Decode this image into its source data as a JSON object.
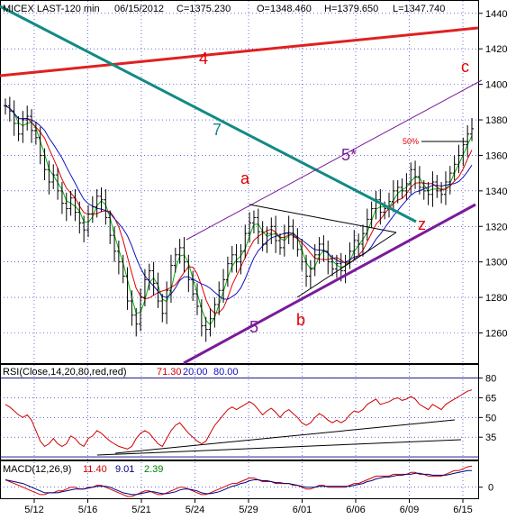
{
  "header": {
    "symbol": "MICEX LAST-120 min",
    "date": "06/15/2012",
    "close": "C=1375.230",
    "open": "O=1348.460",
    "high": "H=1379.650",
    "low": "L=1347.740"
  },
  "rsi_header": {
    "label": "RSI(Close,14,20,80,red,red)",
    "value": "71.30",
    "lower": "20.00",
    "upper": "80.00"
  },
  "macd_header": {
    "label": "MACD(12,26,9)",
    "macd": "11.40",
    "signal": "9.01",
    "hist": "2.39"
  },
  "annotations": {
    "wave_4": "4",
    "wave_7": "7",
    "wave_5star": "5*",
    "wave_a": "a",
    "wave_b": "b",
    "wave_c": "c",
    "wave_z": "z",
    "wave_5": "5",
    "pct": "50%"
  },
  "colors": {
    "red_line": "#e02020",
    "teal_line": "#128a84",
    "purple_line": "#7a1a9a",
    "bars": "#000000",
    "ma_fast": "#00b000",
    "ma_mid": "#e00000",
    "ma_slow": "#1010c0",
    "rsi": "#d00000",
    "rsi_bands": "#000080",
    "annotation_red": "#e00000",
    "annotation_purple": "#7a1a9a",
    "annotation_teal": "#128a84"
  },
  "chart_data": [
    {
      "type": "candlestick",
      "title": "MICEX LAST-120 min",
      "x_tick_labels": [
        "5/12",
        "5/16",
        "5/21",
        "5/24",
        "5/29",
        "6/01",
        "6/06",
        "6/09",
        "6/15"
      ],
      "y_tick_labels": [
        1260,
        1280,
        1300,
        1320,
        1340,
        1360,
        1380,
        1400,
        1420,
        1440
      ],
      "ylim": [
        1243,
        1447
      ],
      "grid": true,
      "price_path": [
        1388,
        1385,
        1378,
        1372,
        1380,
        1382,
        1374,
        1370,
        1360,
        1352,
        1345,
        1349,
        1340,
        1333,
        1330,
        1336,
        1328,
        1322,
        1318,
        1327,
        1331,
        1337,
        1335,
        1325,
        1315,
        1306,
        1300,
        1292,
        1278,
        1270,
        1265,
        1280,
        1290,
        1295,
        1288,
        1278,
        1271,
        1284,
        1298,
        1304,
        1308,
        1300,
        1290,
        1282,
        1275,
        1264,
        1262,
        1268,
        1276,
        1284,
        1290,
        1299,
        1304,
        1300,
        1306,
        1316,
        1322,
        1325,
        1317,
        1310,
        1316,
        1320,
        1312,
        1308,
        1316,
        1320,
        1314,
        1307,
        1300,
        1292,
        1296,
        1304,
        1310,
        1306,
        1300,
        1296,
        1299,
        1295,
        1300,
        1306,
        1312,
        1310,
        1316,
        1324,
        1330,
        1335,
        1328,
        1330,
        1334,
        1340,
        1342,
        1340,
        1344,
        1352,
        1348,
        1342,
        1340,
        1338,
        1345,
        1340,
        1338,
        1345,
        1350,
        1355,
        1360,
        1366,
        1372,
        1375
      ]
    },
    {
      "type": "line",
      "title": "RSI(Close,14,20,80,red,red)",
      "y_tick_labels": [
        35,
        50,
        65,
        80
      ],
      "ylim": [
        18,
        90
      ],
      "grid": true,
      "series": [
        {
          "name": "RSI",
          "values": [
            60,
            58,
            55,
            52,
            50,
            52,
            48,
            40,
            32,
            28,
            30,
            34,
            30,
            28,
            30,
            36,
            34,
            30,
            28,
            34,
            36,
            40,
            38,
            35,
            32,
            30,
            28,
            27,
            26,
            28,
            34,
            38,
            40,
            38,
            34,
            30,
            28,
            34,
            40,
            44,
            46,
            42,
            38,
            35,
            32,
            30,
            32,
            38,
            44,
            48,
            52,
            56,
            58,
            56,
            58,
            60,
            62,
            60,
            56,
            52,
            55,
            57,
            54,
            50,
            54,
            56,
            53,
            50,
            46,
            44,
            46,
            50,
            53,
            51,
            48,
            46,
            48,
            46,
            48,
            52,
            55,
            54,
            56,
            60,
            62,
            64,
            60,
            61,
            62,
            64,
            65,
            63,
            64,
            66,
            64,
            60,
            58,
            56,
            60,
            58,
            56,
            60,
            62,
            64,
            66,
            68,
            70,
            71
          ]
        }
      ],
      "bands": [
        20,
        80
      ]
    },
    {
      "type": "line",
      "title": "MACD(12,26,9)",
      "y_tick_labels": [
        0
      ],
      "ylim": [
        -6,
        14
      ],
      "series": [
        {
          "name": "MACD",
          "values": [
            4,
            3,
            2,
            1,
            0,
            -1,
            -2,
            -3,
            -4,
            -4,
            -3,
            -3,
            -2,
            -2,
            -1,
            0,
            0,
            -1,
            -1,
            0,
            0,
            1,
            1,
            0,
            -1,
            -2,
            -3,
            -4,
            -5,
            -5,
            -4,
            -3,
            -2,
            -2,
            -3,
            -4,
            -4,
            -3,
            -2,
            -1,
            0,
            0,
            -1,
            -2,
            -3,
            -4,
            -4,
            -3,
            -2,
            -1,
            0,
            1,
            2,
            2,
            3,
            4,
            5,
            5,
            4,
            3,
            3,
            3,
            2,
            2,
            2,
            2,
            1,
            1,
            0,
            -1,
            -1,
            0,
            1,
            1,
            0,
            0,
            0,
            0,
            0,
            1,
            2,
            2,
            3,
            4,
            5,
            6,
            6,
            6,
            6,
            7,
            7,
            7,
            7,
            8,
            8,
            7,
            7,
            6,
            6,
            6,
            6,
            7,
            8,
            9,
            9,
            10,
            11,
            11.4
          ]
        },
        {
          "name": "Signal",
          "values": [
            4,
            3.5,
            3,
            2.5,
            2,
            1,
            0,
            -1,
            -2,
            -3,
            -3,
            -3,
            -3,
            -2.5,
            -2,
            -1.5,
            -1,
            -1,
            -1,
            -0.5,
            0,
            0.5,
            0.5,
            0.5,
            0,
            -1,
            -2,
            -3,
            -3.5,
            -4,
            -4,
            -3.5,
            -3,
            -2.5,
            -2.5,
            -3,
            -3.5,
            -3.5,
            -3,
            -2.5,
            -1.5,
            -1,
            -1,
            -1.5,
            -2,
            -3,
            -3.5,
            -3.5,
            -3,
            -2.5,
            -1.5,
            -0.5,
            0.5,
            1,
            2,
            2.5,
            3.5,
            4,
            4,
            3.5,
            3.5,
            3,
            2.5,
            2.5,
            2,
            2,
            1.5,
            1,
            0.5,
            0,
            0,
            0,
            0.5,
            0.5,
            0.5,
            0.5,
            0.5,
            0.5,
            0.5,
            0.5,
            1,
            1.5,
            2,
            3,
            3.5,
            4.5,
            5,
            5.5,
            5.5,
            6,
            6.5,
            6.5,
            7,
            7,
            7.5,
            7.5,
            7,
            7,
            6.5,
            6.5,
            6.5,
            6.5,
            7,
            7.5,
            8,
            8.5,
            9,
            9.01
          ]
        }
      ]
    }
  ]
}
